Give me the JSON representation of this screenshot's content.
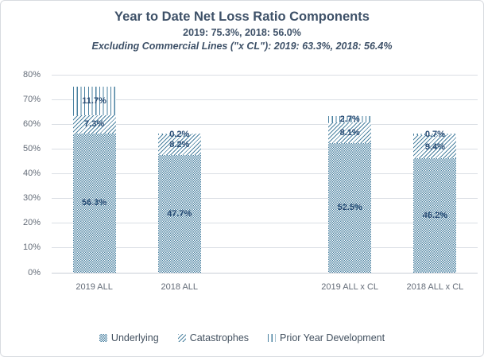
{
  "chart_data": {
    "type": "bar",
    "stacked": true,
    "title": "Year to Date Net Loss Ratio Components",
    "subtitle": "2019: 75.3%, 2018: 56.0%",
    "subtitle_excluding": "Excluding Commercial Lines (\"x CL\"): 2019: 63.3%, 2018: 56.4%",
    "categories": [
      "2019 ALL",
      "2018 ALL",
      "2019 ALL x CL",
      "2018 ALL x CL"
    ],
    "series": [
      {
        "name": "Underlying",
        "pattern": "checker",
        "values": [
          56.3,
          47.7,
          52.5,
          46.2
        ]
      },
      {
        "name": "Catastrophes",
        "pattern": "diagonal",
        "values": [
          7.3,
          8.2,
          8.1,
          9.4
        ]
      },
      {
        "name": "Prior Year Development",
        "pattern": "vertical",
        "values": [
          11.7,
          0.2,
          2.7,
          0.7
        ]
      }
    ],
    "value_suffix": "%",
    "ylim": [
      0,
      80
    ],
    "ytick_step": 10,
    "ytick_labels": [
      "0%",
      "10%",
      "20%",
      "30%",
      "40%",
      "50%",
      "60%",
      "70%",
      "80%"
    ],
    "grid": true,
    "legend_position": "bottom",
    "category_slots": [
      0,
      1,
      3,
      4
    ],
    "total_slots": 5,
    "colors": {
      "pattern_blue": "#4a81a0",
      "data_label": "#264a73",
      "title_text": "#3e5168",
      "axis_text": "#646c78",
      "legend_text": "#42505f",
      "gridline": "#dadee4",
      "background": "#ffffff"
    }
  }
}
